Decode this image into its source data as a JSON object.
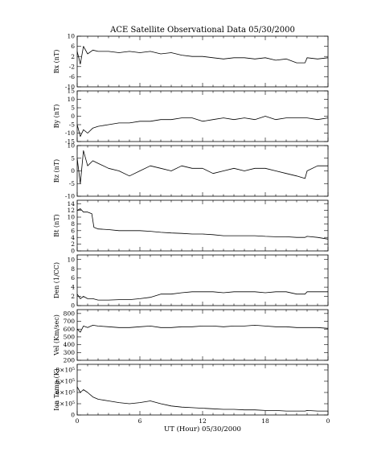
{
  "title": "ACE Satellite Observational Data   05/30/2000",
  "xlabel": "UT (Hour)   05/30/2000",
  "x_ticks": [
    "0",
    "6",
    "12",
    "18",
    "0"
  ],
  "chart_data": [
    {
      "type": "line",
      "ylabel": "Bx (nT)",
      "ylim": [
        -10,
        10
      ],
      "yticks": [
        {
          "v": 10,
          "l": "10"
        },
        {
          "v": 6,
          "l": "6"
        },
        {
          "v": 2,
          "l": "2"
        },
        {
          "v": -2,
          "l": "-2"
        },
        {
          "v": -6,
          "l": "-6"
        },
        {
          "v": -10,
          "l": "-10"
        }
      ],
      "x": [
        0,
        0.3,
        0.6,
        1,
        1.5,
        2,
        3,
        4,
        5,
        6,
        7,
        8,
        9,
        10,
        11,
        12,
        13,
        14,
        15,
        16,
        17,
        18,
        19,
        20,
        21,
        21.8,
        22,
        23,
        24
      ],
      "values": [
        4,
        -1,
        6,
        3,
        4.5,
        4,
        4,
        3.5,
        4,
        3.5,
        4,
        3,
        3.5,
        2.5,
        2,
        2,
        1.5,
        1,
        1.5,
        1.5,
        1,
        1.5,
        0.5,
        1,
        -0.5,
        -0.5,
        1.5,
        1,
        1.5
      ]
    },
    {
      "type": "line",
      "ylabel": "By (nT)",
      "ylim": [
        -15,
        15
      ],
      "yticks": [
        {
          "v": 15,
          "l": "15"
        },
        {
          "v": 10,
          "l": "10"
        },
        {
          "v": 5,
          "l": "5"
        },
        {
          "v": 0,
          "l": "0"
        },
        {
          "v": -5,
          "l": "-5"
        },
        {
          "v": -10,
          "l": "-10"
        },
        {
          "v": -15,
          "l": "-15"
        }
      ],
      "x": [
        0,
        0.3,
        0.6,
        1,
        1.5,
        2,
        3,
        4,
        5,
        6,
        7,
        8,
        9,
        10,
        11,
        12,
        13,
        14,
        15,
        16,
        17,
        18,
        19,
        20,
        21,
        21.8,
        22,
        23,
        24
      ],
      "values": [
        -5,
        -12,
        -8,
        -10,
        -7,
        -6,
        -5,
        -4,
        -4,
        -3,
        -3,
        -2,
        -2,
        -1,
        -1,
        -3,
        -2,
        -1,
        -2,
        -1,
        -2,
        0,
        -2,
        -1,
        -1,
        -1,
        -1,
        -2,
        -1
      ]
    },
    {
      "type": "line",
      "ylabel": "Bz (nT)",
      "ylim": [
        -10,
        10
      ],
      "yticks": [
        {
          "v": 10,
          "l": "10"
        },
        {
          "v": 5,
          "l": "5"
        },
        {
          "v": 0,
          "l": "0"
        },
        {
          "v": -5,
          "l": "-5"
        },
        {
          "v": -10,
          "l": "-10"
        }
      ],
      "x": [
        0,
        0.3,
        0.6,
        1,
        1.5,
        2,
        3,
        4,
        5,
        6,
        7,
        8,
        9,
        10,
        11,
        12,
        13,
        14,
        15,
        16,
        17,
        18,
        19,
        20,
        21,
        21.8,
        22,
        23,
        24
      ],
      "values": [
        5,
        -5,
        8,
        2,
        4,
        3,
        1,
        0,
        -2,
        0,
        2,
        1,
        0,
        2,
        1,
        1,
        -1,
        0,
        1,
        0,
        1,
        1,
        0,
        -1,
        -2,
        -3,
        0,
        2,
        2
      ]
    },
    {
      "type": "line",
      "ylabel": "Bt (nT)",
      "ylim": [
        0,
        15
      ],
      "yticks": [
        {
          "v": 14,
          "l": "14"
        },
        {
          "v": 12,
          "l": "12"
        },
        {
          "v": 10,
          "l": "10"
        },
        {
          "v": 8,
          "l": "8"
        },
        {
          "v": 6,
          "l": "6"
        },
        {
          "v": 4,
          "l": "4"
        },
        {
          "v": 2,
          "l": "2"
        },
        {
          "v": 0,
          "l": "0"
        }
      ],
      "x": [
        0,
        0.3,
        0.6,
        1,
        1.4,
        1.6,
        2,
        3,
        4,
        5,
        6,
        7,
        8,
        9,
        10,
        11,
        12,
        13,
        14,
        15,
        16,
        17,
        18,
        19,
        20,
        21,
        21.8,
        22,
        23,
        24
      ],
      "values": [
        12,
        12.5,
        11.5,
        11.5,
        11,
        7,
        6.5,
        6.3,
        6,
        6,
        6,
        5.8,
        5.5,
        5.3,
        5.2,
        5,
        5,
        4.8,
        4.5,
        4.5,
        4.5,
        4.5,
        4.3,
        4.2,
        4.2,
        4,
        4,
        4.3,
        4,
        3.5
      ]
    },
    {
      "type": "line",
      "ylabel": "Den (1/CC)",
      "ylim": [
        0,
        11
      ],
      "yticks": [
        {
          "v": 10,
          "l": "10"
        },
        {
          "v": 8,
          "l": "8"
        },
        {
          "v": 6,
          "l": "6"
        },
        {
          "v": 4,
          "l": "4"
        },
        {
          "v": 2,
          "l": "2"
        },
        {
          "v": 0,
          "l": "0"
        }
      ],
      "x": [
        0,
        0.3,
        0.6,
        1,
        1.5,
        2,
        3,
        4,
        5,
        6,
        7,
        8,
        9,
        10,
        11,
        12,
        13,
        14,
        15,
        16,
        17,
        18,
        19,
        20,
        21,
        21.8,
        22,
        23,
        24
      ],
      "values": [
        2.5,
        1.5,
        2,
        1.5,
        1.5,
        1.2,
        1.2,
        1.3,
        1.3,
        1.5,
        1.8,
        2.5,
        2.5,
        2.8,
        3,
        3,
        3,
        2.8,
        3,
        3,
        3,
        2.8,
        3,
        3,
        2.5,
        2.5,
        3,
        3,
        3
      ]
    },
    {
      "type": "line",
      "ylabel": "Vel (Km/sec)",
      "ylim": [
        200,
        850
      ],
      "yticks": [
        {
          "v": 800,
          "l": "800"
        },
        {
          "v": 700,
          "l": "700"
        },
        {
          "v": 600,
          "l": "600"
        },
        {
          "v": 500,
          "l": "500"
        },
        {
          "v": 400,
          "l": "400"
        },
        {
          "v": 300,
          "l": "300"
        },
        {
          "v": 200,
          "l": "200"
        }
      ],
      "x": [
        0,
        0.3,
        0.6,
        1,
        1.5,
        2,
        3,
        4,
        5,
        6,
        7,
        8,
        9,
        10,
        11,
        12,
        13,
        14,
        15,
        16,
        17,
        18,
        19,
        20,
        21,
        21.8,
        22,
        23,
        24
      ],
      "values": [
        600,
        560,
        640,
        620,
        650,
        640,
        630,
        620,
        620,
        630,
        640,
        620,
        620,
        630,
        630,
        640,
        640,
        630,
        640,
        640,
        650,
        640,
        630,
        630,
        620,
        620,
        620,
        620,
        610
      ]
    },
    {
      "type": "line",
      "ylabel": "Ion Temp (K)",
      "ylim": [
        0,
        900000
      ],
      "yticks": [
        {
          "v": 800000,
          "l": "8×10⁵"
        },
        {
          "v": 600000,
          "l": "6×10⁵"
        },
        {
          "v": 400000,
          "l": "4×10⁵"
        },
        {
          "v": 200000,
          "l": "2×10⁵"
        },
        {
          "v": 0,
          "l": "0"
        }
      ],
      "x": [
        0,
        0.3,
        0.6,
        1,
        1.5,
        2,
        3,
        4,
        5,
        6,
        7,
        8,
        9,
        10,
        11,
        12,
        13,
        14,
        15,
        16,
        17,
        18,
        19,
        20,
        21,
        21.8,
        22,
        23,
        24
      ],
      "values": [
        500000,
        400000,
        450000,
        400000,
        320000,
        280000,
        250000,
        220000,
        200000,
        220000,
        250000,
        200000,
        160000,
        140000,
        130000,
        120000,
        110000,
        100000,
        100000,
        90000,
        90000,
        80000,
        80000,
        70000,
        70000,
        70000,
        80000,
        70000,
        70000
      ]
    }
  ]
}
